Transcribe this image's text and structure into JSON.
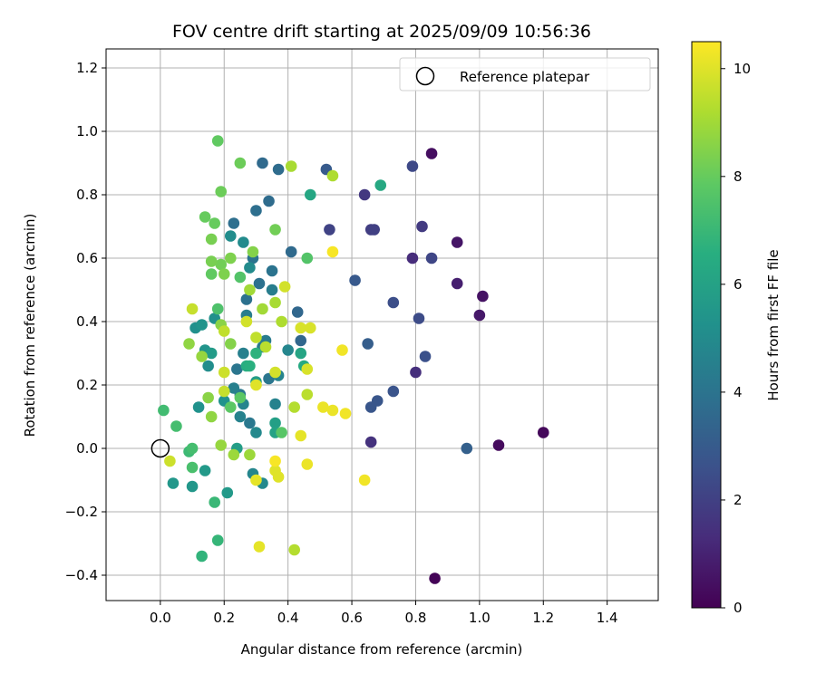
{
  "chart_data": {
    "type": "scatter",
    "title": "FOV centre drift starting at 2025/09/09 10:56:36",
    "xlabel": "Angular distance from reference (arcmin)",
    "ylabel": "Rotation from reference (arcmin)",
    "xlim": [
      -0.17,
      1.56
    ],
    "ylim": [
      -0.48,
      1.26
    ],
    "xticks": [
      0.0,
      0.2,
      0.4,
      0.6,
      0.8,
      1.0,
      1.2,
      1.4
    ],
    "yticks": [
      -0.4,
      -0.2,
      0.0,
      0.2,
      0.4,
      0.6,
      0.8,
      1.0,
      1.2
    ],
    "grid": true,
    "legend": {
      "placement": "top-right",
      "entries": [
        "Reference platepar"
      ]
    },
    "reference_point": {
      "x": 0.0,
      "y": 0.0
    },
    "colorbar": {
      "label": "Hours from first FF file",
      "colormap": "viridis",
      "range": [
        0,
        10.5
      ],
      "ticks": [
        0,
        2,
        4,
        6,
        8,
        10
      ]
    },
    "points": [
      [
        0.86,
        -0.41,
        0.1
      ],
      [
        1.2,
        0.05,
        0.2
      ],
      [
        1.06,
        0.01,
        0.3
      ],
      [
        0.85,
        0.93,
        0.4
      ],
      [
        1.01,
        0.48,
        0.5
      ],
      [
        0.93,
        0.65,
        0.6
      ],
      [
        1.0,
        0.42,
        0.7
      ],
      [
        0.93,
        0.52,
        0.9
      ],
      [
        0.79,
        0.6,
        1.3
      ],
      [
        0.8,
        0.24,
        1.4
      ],
      [
        0.66,
        0.02,
        1.5
      ],
      [
        0.64,
        0.8,
        1.7
      ],
      [
        0.82,
        0.7,
        1.8
      ],
      [
        0.66,
        0.69,
        1.9
      ],
      [
        0.67,
        0.69,
        2.0
      ],
      [
        0.53,
        0.69,
        2.1
      ],
      [
        0.85,
        0.6,
        2.2
      ],
      [
        0.79,
        0.89,
        2.3
      ],
      [
        0.81,
        0.41,
        2.4
      ],
      [
        0.73,
        0.46,
        2.5
      ],
      [
        0.83,
        0.29,
        2.6
      ],
      [
        0.73,
        0.18,
        2.7
      ],
      [
        0.68,
        0.15,
        2.8
      ],
      [
        0.66,
        0.13,
        2.8
      ],
      [
        0.61,
        0.53,
        2.9
      ],
      [
        0.52,
        0.88,
        3.0
      ],
      [
        0.65,
        0.33,
        3.1
      ],
      [
        0.96,
        0.0,
        3.2
      ],
      [
        0.44,
        0.34,
        3.5
      ],
      [
        0.43,
        0.43,
        3.5
      ],
      [
        0.41,
        0.62,
        3.6
      ],
      [
        0.32,
        0.9,
        3.6
      ],
      [
        0.37,
        0.88,
        3.7
      ],
      [
        0.34,
        0.78,
        3.7
      ],
      [
        0.3,
        0.75,
        3.8
      ],
      [
        0.23,
        0.71,
        3.8
      ],
      [
        0.27,
        0.47,
        3.9
      ],
      [
        0.31,
        0.52,
        3.9
      ],
      [
        0.35,
        0.56,
        4.0
      ],
      [
        0.29,
        0.6,
        4.0
      ],
      [
        0.24,
        0.25,
        4.1
      ],
      [
        0.34,
        0.22,
        4.1
      ],
      [
        0.25,
        0.17,
        4.2
      ],
      [
        0.28,
        0.08,
        4.2
      ],
      [
        0.33,
        0.34,
        4.3
      ],
      [
        0.32,
        0.32,
        4.3
      ],
      [
        0.35,
        0.5,
        4.4
      ],
      [
        0.27,
        0.42,
        4.4
      ],
      [
        0.23,
        0.19,
        4.5
      ],
      [
        0.26,
        0.3,
        4.5
      ],
      [
        0.25,
        0.1,
        4.6
      ],
      [
        0.36,
        0.14,
        4.6
      ],
      [
        0.26,
        0.14,
        4.7
      ],
      [
        0.37,
        0.23,
        4.7
      ],
      [
        0.4,
        0.31,
        4.8
      ],
      [
        0.29,
        -0.08,
        4.8
      ],
      [
        0.3,
        0.05,
        4.9
      ],
      [
        0.32,
        -0.11,
        4.9
      ],
      [
        0.28,
        0.57,
        5.0
      ],
      [
        0.26,
        0.65,
        5.0
      ],
      [
        0.22,
        0.67,
        5.1
      ],
      [
        0.15,
        0.26,
        5.1
      ],
      [
        0.11,
        0.38,
        5.2
      ],
      [
        0.17,
        0.41,
        5.2
      ],
      [
        0.2,
        0.15,
        5.3
      ],
      [
        0.12,
        0.13,
        5.3
      ],
      [
        0.14,
        0.31,
        5.4
      ],
      [
        0.13,
        0.39,
        5.4
      ],
      [
        0.04,
        -0.11,
        5.5
      ],
      [
        0.1,
        -0.12,
        5.5
      ],
      [
        0.14,
        -0.07,
        5.6
      ],
      [
        0.21,
        -0.14,
        5.6
      ],
      [
        0.16,
        0.3,
        5.7
      ],
      [
        0.24,
        0.0,
        5.8
      ],
      [
        0.3,
        0.21,
        5.8
      ],
      [
        0.36,
        0.08,
        5.9
      ],
      [
        0.36,
        0.05,
        6.0
      ],
      [
        0.44,
        0.3,
        6.1
      ],
      [
        0.47,
        0.8,
        6.2
      ],
      [
        0.69,
        0.83,
        6.3
      ],
      [
        0.45,
        0.26,
        6.4
      ],
      [
        0.27,
        0.26,
        6.5
      ],
      [
        0.28,
        0.26,
        6.6
      ],
      [
        0.3,
        0.3,
        6.7
      ],
      [
        0.13,
        -0.34,
        6.8
      ],
      [
        0.18,
        -0.29,
        6.9
      ],
      [
        0.17,
        -0.17,
        7.0
      ],
      [
        0.09,
        -0.01,
        7.1
      ],
      [
        0.01,
        0.12,
        7.2
      ],
      [
        0.05,
        0.07,
        7.3
      ],
      [
        0.1,
        0.0,
        7.3
      ],
      [
        0.1,
        -0.06,
        7.4
      ],
      [
        0.18,
        0.44,
        7.5
      ],
      [
        0.25,
        0.54,
        7.6
      ],
      [
        0.46,
        0.6,
        7.6
      ],
      [
        0.38,
        0.05,
        7.7
      ],
      [
        0.22,
        0.13,
        7.8
      ],
      [
        0.25,
        0.16,
        7.8
      ],
      [
        0.16,
        0.55,
        7.9
      ],
      [
        0.18,
        0.97,
        7.9
      ],
      [
        0.14,
        0.73,
        8.0
      ],
      [
        0.17,
        0.71,
        8.0
      ],
      [
        0.19,
        0.81,
        8.1
      ],
      [
        0.25,
        0.9,
        8.1
      ],
      [
        0.36,
        0.69,
        8.2
      ],
      [
        0.19,
        0.58,
        8.2
      ],
      [
        0.16,
        0.59,
        8.3
      ],
      [
        0.16,
        0.66,
        8.3
      ],
      [
        0.2,
        0.55,
        8.4
      ],
      [
        0.22,
        0.6,
        8.4
      ],
      [
        0.29,
        0.62,
        8.5
      ],
      [
        0.22,
        0.33,
        8.5
      ],
      [
        0.19,
        0.39,
        8.6
      ],
      [
        0.15,
        0.16,
        8.6
      ],
      [
        0.09,
        0.33,
        8.7
      ],
      [
        0.16,
        0.1,
        8.7
      ],
      [
        0.19,
        0.01,
        8.8
      ],
      [
        0.13,
        0.29,
        8.8
      ],
      [
        0.23,
        -0.02,
        8.9
      ],
      [
        0.28,
        -0.02,
        8.9
      ],
      [
        0.28,
        0.5,
        9.0
      ],
      [
        0.32,
        0.44,
        9.0
      ],
      [
        0.36,
        0.46,
        9.1
      ],
      [
        0.41,
        0.89,
        9.1
      ],
      [
        0.54,
        0.86,
        9.2
      ],
      [
        0.38,
        0.4,
        9.2
      ],
      [
        0.42,
        0.13,
        9.3
      ],
      [
        0.42,
        -0.32,
        9.3
      ],
      [
        0.46,
        0.17,
        9.4
      ],
      [
        0.33,
        0.32,
        9.4
      ],
      [
        0.3,
        0.35,
        9.5
      ],
      [
        0.2,
        0.37,
        9.5
      ],
      [
        0.2,
        0.18,
        9.6
      ],
      [
        0.1,
        0.44,
        9.6
      ],
      [
        0.03,
        -0.04,
        9.7
      ],
      [
        0.2,
        0.24,
        9.7
      ],
      [
        0.27,
        0.4,
        9.8
      ],
      [
        0.36,
        0.24,
        9.8
      ],
      [
        0.39,
        0.51,
        9.8
      ],
      [
        0.44,
        0.38,
        9.9
      ],
      [
        0.47,
        0.38,
        9.9
      ],
      [
        0.46,
        0.25,
        9.9
      ],
      [
        0.36,
        -0.07,
        10.0
      ],
      [
        0.37,
        -0.09,
        10.0
      ],
      [
        0.3,
        0.2,
        10.0
      ],
      [
        0.3,
        -0.1,
        10.1
      ],
      [
        0.31,
        -0.31,
        10.1
      ],
      [
        0.44,
        0.04,
        10.1
      ],
      [
        0.46,
        -0.05,
        10.2
      ],
      [
        0.51,
        0.13,
        10.2
      ],
      [
        0.54,
        0.12,
        10.2
      ],
      [
        0.57,
        0.31,
        10.3
      ],
      [
        0.58,
        0.11,
        10.3
      ],
      [
        0.64,
        -0.1,
        10.3
      ],
      [
        0.54,
        0.62,
        10.4
      ],
      [
        0.36,
        -0.04,
        10.4
      ]
    ]
  }
}
